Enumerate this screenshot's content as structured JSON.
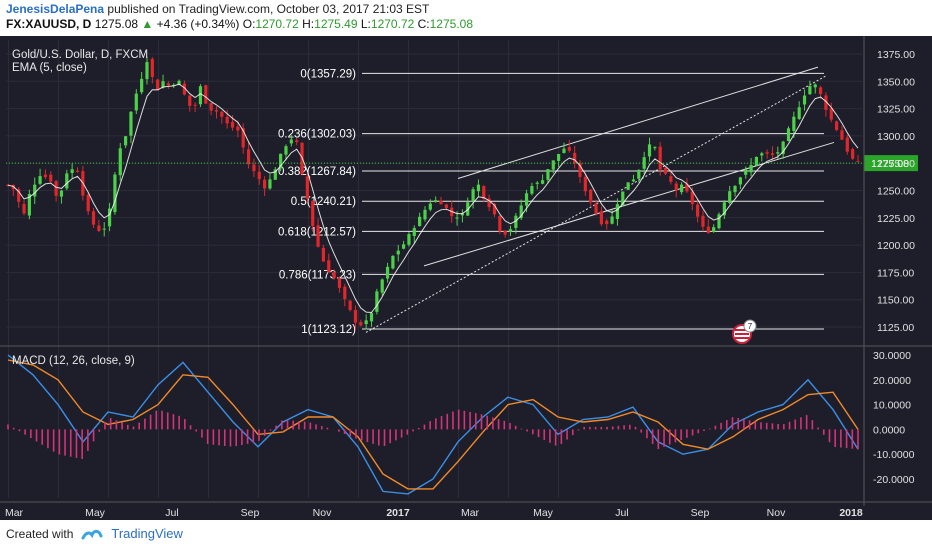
{
  "header": {
    "author": "JenesisDelaPena",
    "published": "published on TradingView.com, October 03, 2017 21:03 EST",
    "symbol": "FX:XAUUSD, D",
    "last": "1275.08",
    "change": "+4.36 (+0.34%)",
    "o_label": "O:",
    "o_val": "1270.72",
    "h_label": "H:",
    "h_val": "1275.49",
    "l_label": "L:",
    "l_val": "1270.72",
    "c_label": "C:",
    "c_val": "1275.08"
  },
  "footer": {
    "created_with": "Created with",
    "brand": "TradingView"
  },
  "colors": {
    "panel_bg": "#1e1e2a",
    "up": "#4cd24a",
    "down": "#e2262a",
    "ema": "#ffffff",
    "macd": "#3b8fe6",
    "signal": "#f08a2a",
    "hist": "#d6337a",
    "fib": "#e8e8e8",
    "price_line": "#33cc33",
    "badge": "#c8223a"
  },
  "chart_data": [
    {
      "type": "candlestick",
      "title": "Gold/U.S. Dollar, D, FXCM",
      "indicator": "EMA (5, close)",
      "x_ticks": [
        "Mar",
        "May",
        "Jul",
        "Sep",
        "Nov",
        "2017",
        "Mar",
        "May",
        "Jul",
        "Sep",
        "Nov",
        "2018"
      ],
      "y_ticks": [
        1125.0,
        1150.0,
        1175.0,
        1200.0,
        1225.0,
        1250.0,
        1275.0,
        1300.0,
        1325.0,
        1350.0,
        1375.0
      ],
      "ylim": [
        1113,
        1382
      ],
      "last_price": "1275.08",
      "fib_levels": [
        {
          "ratio": "0",
          "price": 1357.29,
          "label": "0(1357.29)"
        },
        {
          "ratio": "0.236",
          "price": 1302.03,
          "label": "0.236(1302.03)"
        },
        {
          "ratio": "0.382",
          "price": 1267.84,
          "label": "0.382(1267.84)"
        },
        {
          "ratio": "0.5",
          "price": 1240.21,
          "label": "0.5(1240.21)"
        },
        {
          "ratio": "0.618",
          "price": 1212.57,
          "label": "0.618(1212.57)"
        },
        {
          "ratio": "0.786",
          "price": 1173.23,
          "label": "0.786(1173.23)"
        },
        {
          "ratio": "1",
          "price": 1123.12,
          "label": "1(1123.12)"
        }
      ],
      "price_path": [
        [
          0,
          1255
        ],
        [
          0.3,
          1250
        ],
        [
          0.6,
          1225
        ],
        [
          0.9,
          1250
        ],
        [
          1.3,
          1265
        ],
        [
          1.7,
          1260
        ],
        [
          2.0,
          1240
        ],
        [
          2.4,
          1270
        ],
        [
          2.8,
          1268
        ],
        [
          3.1,
          1235
        ],
        [
          3.5,
          1215
        ],
        [
          3.8,
          1212
        ],
        [
          4.1,
          1235
        ],
        [
          4.4,
          1285
        ],
        [
          4.7,
          1300
        ],
        [
          5.0,
          1330
        ],
        [
          5.3,
          1350
        ],
        [
          5.6,
          1372
        ],
        [
          5.9,
          1340
        ],
        [
          6.2,
          1350
        ],
        [
          6.5,
          1345
        ],
        [
          6.8,
          1352
        ],
        [
          7.1,
          1335
        ],
        [
          7.4,
          1322
        ],
        [
          7.7,
          1345
        ],
        [
          8.0,
          1325
        ],
        [
          8.4,
          1322
        ],
        [
          8.8,
          1310
        ],
        [
          9.2,
          1305
        ],
        [
          9.6,
          1275
        ],
        [
          10.0,
          1262
        ],
        [
          10.3,
          1252
        ],
        [
          10.6,
          1265
        ],
        [
          10.9,
          1282
        ],
        [
          11.2,
          1295
        ],
        [
          11.5,
          1300
        ],
        [
          11.75,
          1265
        ],
        [
          12.0,
          1240
        ],
        [
          12.3,
          1205
        ],
        [
          12.7,
          1180
        ],
        [
          13.1,
          1168
        ],
        [
          13.5,
          1148
        ],
        [
          13.9,
          1130
        ],
        [
          14.2,
          1126
        ],
        [
          14.5,
          1135
        ],
        [
          14.8,
          1160
        ],
        [
          15.1,
          1175
        ],
        [
          15.4,
          1190
        ],
        [
          15.8,
          1200
        ],
        [
          16.2,
          1215
        ],
        [
          16.6,
          1230
        ],
        [
          17.0,
          1242
        ],
        [
          17.4,
          1238
        ],
        [
          17.8,
          1225
        ],
        [
          18.2,
          1228
        ],
        [
          18.5,
          1248
        ],
        [
          18.8,
          1256
        ],
        [
          19.1,
          1240
        ],
        [
          19.4,
          1232
        ],
        [
          19.7,
          1212
        ],
        [
          20.0,
          1210
        ],
        [
          20.3,
          1225
        ],
        [
          20.6,
          1240
        ],
        [
          20.9,
          1255
        ],
        [
          21.3,
          1257
        ],
        [
          21.6,
          1270
        ],
        [
          22.0,
          1283
        ],
        [
          22.3,
          1290
        ],
        [
          22.6,
          1280
        ],
        [
          22.9,
          1260
        ],
        [
          23.2,
          1245
        ],
        [
          23.5,
          1230
        ],
        [
          23.8,
          1218
        ],
        [
          24.1,
          1222
        ],
        [
          24.4,
          1240
        ],
        [
          24.8,
          1258
        ],
        [
          25.1,
          1262
        ],
        [
          25.5,
          1285
        ],
        [
          25.8,
          1296
        ],
        [
          26.1,
          1268
        ],
        [
          26.4,
          1262
        ],
        [
          26.7,
          1250
        ],
        [
          27.0,
          1255
        ],
        [
          27.3,
          1242
        ],
        [
          27.6,
          1225
        ],
        [
          27.9,
          1211
        ],
        [
          28.2,
          1215
        ],
        [
          28.5,
          1232
        ],
        [
          28.8,
          1248
        ],
        [
          29.1,
          1256
        ],
        [
          29.4,
          1266
        ],
        [
          29.7,
          1272
        ],
        [
          30.0,
          1284
        ],
        [
          30.4,
          1283
        ],
        [
          30.7,
          1282
        ],
        [
          31.0,
          1293
        ],
        [
          31.3,
          1310
        ],
        [
          31.6,
          1325
        ],
        [
          31.9,
          1340
        ],
        [
          32.2,
          1350
        ],
        [
          32.5,
          1338
        ],
        [
          32.8,
          1320
        ],
        [
          33.1,
          1308
        ],
        [
          33.4,
          1295
        ],
        [
          33.7,
          1280
        ],
        [
          34.0,
          1275
        ]
      ]
    },
    {
      "type": "line",
      "title": "MACD (12, 26, close, 9)",
      "y_ticks": [
        30.0,
        20.0,
        10.0,
        0.0,
        -10.0,
        -20.0
      ],
      "y_tick_labels": [
        "30.0000",
        "20.0000",
        "10.0000",
        "0.0000",
        "-10.0000",
        "-20.0000"
      ],
      "ylim": [
        -26.5,
        32
      ],
      "series": [
        {
          "key": "macd",
          "points": [
            [
              0,
              30
            ],
            [
              1,
              22
            ],
            [
              2,
              10
            ],
            [
              3,
              -5
            ],
            [
              4,
              7
            ],
            [
              5,
              5
            ],
            [
              6,
              18
            ],
            [
              7,
              27
            ],
            [
              8,
              15
            ],
            [
              9,
              3
            ],
            [
              10,
              -7
            ],
            [
              11,
              3
            ],
            [
              12,
              8
            ],
            [
              13,
              5
            ],
            [
              14,
              -7
            ],
            [
              15,
              -25
            ],
            [
              16,
              -26
            ],
            [
              17,
              -20
            ],
            [
              18,
              -5
            ],
            [
              19,
              5
            ],
            [
              20,
              13
            ],
            [
              21,
              10
            ],
            [
              22,
              -2
            ],
            [
              23,
              4
            ],
            [
              24,
              5
            ],
            [
              25,
              9
            ],
            [
              26,
              -5
            ],
            [
              27,
              -10
            ],
            [
              28,
              -8
            ],
            [
              29,
              2
            ],
            [
              30,
              7
            ],
            [
              31,
              10
            ],
            [
              32,
              20
            ],
            [
              33,
              8
            ],
            [
              34,
              -8
            ]
          ]
        },
        {
          "key": "signal",
          "points": [
            [
              0,
              28
            ],
            [
              1,
              26
            ],
            [
              2,
              20
            ],
            [
              3,
              7
            ],
            [
              4,
              2
            ],
            [
              5,
              4
            ],
            [
              6,
              10
            ],
            [
              7,
              22
            ],
            [
              8,
              21
            ],
            [
              9,
              10
            ],
            [
              10,
              -2
            ],
            [
              11,
              -1
            ],
            [
              12,
              5
            ],
            [
              13,
              5
            ],
            [
              14,
              -3
            ],
            [
              15,
              -18
            ],
            [
              16,
              -24
            ],
            [
              17,
              -24
            ],
            [
              18,
              -13
            ],
            [
              19,
              -1
            ],
            [
              20,
              10
            ],
            [
              21,
              12
            ],
            [
              22,
              5
            ],
            [
              23,
              3
            ],
            [
              24,
              4
            ],
            [
              25,
              7
            ],
            [
              26,
              3
            ],
            [
              27,
              -6
            ],
            [
              28,
              -8
            ],
            [
              29,
              -3
            ],
            [
              30,
              4
            ],
            [
              31,
              8
            ],
            [
              32,
              14
            ],
            [
              33,
              15
            ],
            [
              34,
              0
            ]
          ]
        },
        {
          "key": "hist",
          "points": [
            [
              0,
              2
            ],
            [
              1,
              -4
            ],
            [
              2,
              -10
            ],
            [
              3,
              -12
            ],
            [
              4,
              5
            ],
            [
              5,
              1
            ],
            [
              6,
              8
            ],
            [
              7,
              5
            ],
            [
              8,
              -6
            ],
            [
              9,
              -7
            ],
            [
              10,
              -5
            ],
            [
              11,
              4
            ],
            [
              12,
              3
            ],
            [
              13,
              0
            ],
            [
              14,
              -4
            ],
            [
              15,
              -7
            ],
            [
              16,
              -2
            ],
            [
              17,
              4
            ],
            [
              18,
              8
            ],
            [
              19,
              6
            ],
            [
              20,
              3
            ],
            [
              21,
              -2
            ],
            [
              22,
              -7
            ],
            [
              23,
              1
            ],
            [
              24,
              1
            ],
            [
              25,
              2
            ],
            [
              26,
              -8
            ],
            [
              27,
              -4
            ],
            [
              28,
              0
            ],
            [
              29,
              5
            ],
            [
              30,
              3
            ],
            [
              31,
              2
            ],
            [
              32,
              6
            ],
            [
              33,
              -7
            ],
            [
              34,
              -8
            ]
          ]
        }
      ]
    }
  ]
}
